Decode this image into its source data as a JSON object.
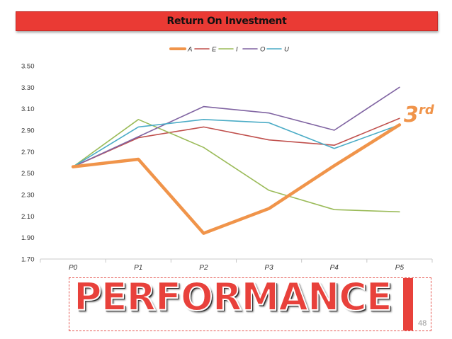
{
  "slide": {
    "title": "Return On Investment",
    "banner": "PERFORMANCE",
    "page_number": "48",
    "callout": {
      "base": "3",
      "sup": "rd"
    }
  },
  "colors": {
    "title_bg": "#ea3a34",
    "banner": "#e8413b",
    "callout": "#f0944a"
  },
  "chart_data": {
    "type": "line",
    "categories": [
      "P0",
      "P1",
      "P2",
      "P3",
      "P4",
      "P5"
    ],
    "ylim": [
      1.7,
      3.5
    ],
    "yticks": [
      "1.70",
      "1.90",
      "2.10",
      "2.30",
      "2.50",
      "2.70",
      "2.90",
      "3.10",
      "3.30",
      "3.50"
    ],
    "grid": false,
    "legend_position": "top",
    "series": [
      {
        "name": "A",
        "color": "#f0944a",
        "emphasis": true,
        "values": [
          2.56,
          2.63,
          1.94,
          2.17,
          2.57,
          2.95
        ]
      },
      {
        "name": "E",
        "color": "#c0504d",
        "values": [
          2.56,
          2.83,
          2.93,
          2.81,
          2.76,
          3.01
        ]
      },
      {
        "name": "I",
        "color": "#9bbb59",
        "values": [
          2.56,
          3.0,
          2.74,
          2.34,
          2.16,
          2.14
        ]
      },
      {
        "name": "O",
        "color": "#8064a2",
        "values": [
          2.56,
          2.84,
          3.12,
          3.06,
          2.9,
          3.3
        ]
      },
      {
        "name": "U",
        "color": "#4bacc6",
        "values": [
          2.56,
          2.93,
          3.0,
          2.97,
          2.73,
          2.95
        ]
      }
    ]
  }
}
